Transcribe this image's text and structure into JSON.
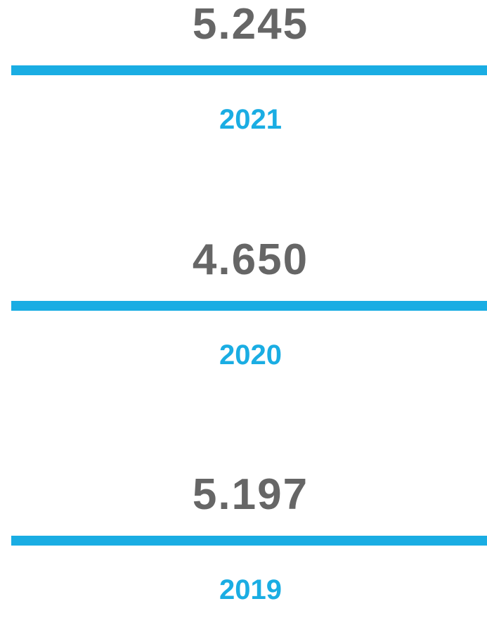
{
  "items": [
    {
      "value": "5.245",
      "year": "2021"
    },
    {
      "value": "4.650",
      "year": "2020"
    },
    {
      "value": "5.197",
      "year": "2019"
    }
  ]
}
